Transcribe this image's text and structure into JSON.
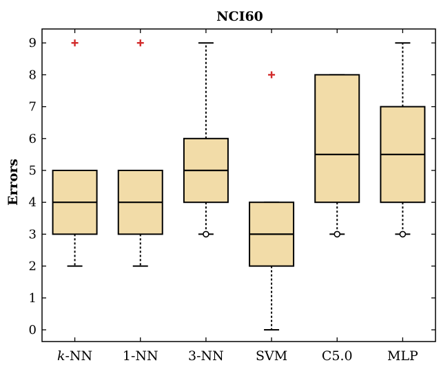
{
  "chart_data": {
    "type": "box",
    "title": "NCI60",
    "xlabel": "",
    "ylabel": "Errors",
    "ylim": [
      -0.35,
      9.5
    ],
    "yticks": [
      "0",
      "1",
      "2",
      "3",
      "4",
      "5",
      "6",
      "7",
      "8",
      "9"
    ],
    "categories": [
      {
        "prefix": "k",
        "suffix": "-NN"
      },
      {
        "prefix": "",
        "suffix": "1-NN"
      },
      {
        "prefix": "",
        "suffix": "3-NN"
      },
      {
        "prefix": "",
        "suffix": "SVM"
      },
      {
        "prefix": "",
        "suffix": "C5.0"
      },
      {
        "prefix": "",
        "suffix": "MLP"
      }
    ],
    "boxes": [
      {
        "q1": 3,
        "median": 4,
        "q3": 5,
        "whisker_low": 2,
        "whisker_high": 5,
        "outliers": [
          9
        ]
      },
      {
        "q1": 3,
        "median": 4,
        "q3": 5,
        "whisker_low": 2,
        "whisker_high": 5,
        "outliers": [
          9
        ]
      },
      {
        "q1": 4,
        "median": 5,
        "q3": 6,
        "whisker_low": 3,
        "whisker_high": 9,
        "outliers": []
      },
      {
        "q1": 2,
        "median": 3,
        "q3": 4,
        "whisker_low": 0,
        "whisker_high": 4,
        "outliers": [
          8
        ]
      },
      {
        "q1": 4,
        "median": 5.5,
        "q3": 8,
        "whisker_low": 3,
        "whisker_high": 8,
        "outliers": []
      },
      {
        "q1": 4,
        "median": 5.5,
        "q3": 7,
        "whisker_low": 3,
        "whisker_high": 9,
        "outliers": []
      }
    ],
    "grid": false,
    "colors": {
      "box_fill": "#F2DCA8",
      "box_edge": "#000000",
      "outlier": "#D22B2B",
      "whisker": "#000000"
    }
  }
}
